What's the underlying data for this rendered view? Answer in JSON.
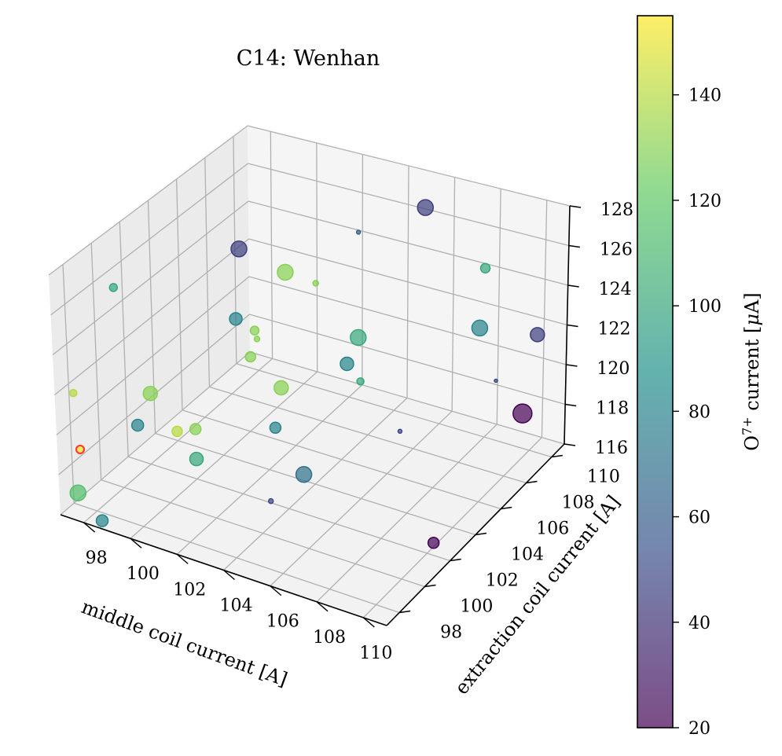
{
  "colors": {
    "pane": "#f2f2f2",
    "pane_side": "#ebebeb",
    "pane_back": "#f5f5f5",
    "grid": "#b0b0b0",
    "highlight": "#ff3b30",
    "colormap": [
      "#440154",
      "#3b528b",
      "#21918c",
      "#5ec962",
      "#fde725"
    ]
  },
  "chart_data": {
    "type": "scatter",
    "projection": "3d",
    "title": "C14: Wenhan",
    "xlabel": "middle coil current [A]",
    "ylabel": "extraction coil current [A]",
    "zlabel": "",
    "xlim": [
      97,
      111
    ],
    "ylim": [
      97,
      111
    ],
    "zlim": [
      116,
      128
    ],
    "xticks": [
      "98",
      "100",
      "102",
      "104",
      "106",
      "108",
      "110"
    ],
    "yticks": [
      "98",
      "100",
      "102",
      "104",
      "106",
      "108",
      "110"
    ],
    "zticks": [
      "116",
      "118",
      "120",
      "122",
      "124",
      "126",
      "128"
    ],
    "grid": true,
    "colorbar": {
      "label": "O⁷⁺ current [μA]",
      "label_base": "O",
      "label_sup": "7+",
      "label_rest": " current [",
      "label_mu": "μ",
      "label_unit": "A]",
      "min": 20,
      "max": 155,
      "ticks": [
        "20",
        "40",
        "60",
        "80",
        "100",
        "120",
        "140"
      ],
      "alpha": 0.7
    },
    "points": [
      {
        "x": 101.5,
        "y": 103.0,
        "z": 127.5,
        "c": 45,
        "s": 20
      },
      {
        "x": 98.5,
        "y": 99.0,
        "z": 126.8,
        "c": 100,
        "s": 10
      },
      {
        "x": 104.0,
        "y": 107.5,
        "z": 126.5,
        "c": 60,
        "s": 5
      },
      {
        "x": 106.0,
        "y": 109.0,
        "z": 127.5,
        "c": 45,
        "s": 20
      },
      {
        "x": 102.0,
        "y": 105.5,
        "z": 125.0,
        "c": 130,
        "s": 20
      },
      {
        "x": 103.0,
        "y": 106.0,
        "z": 124.5,
        "c": 130,
        "s": 7
      },
      {
        "x": 101.0,
        "y": 103.5,
        "z": 123.5,
        "c": 80,
        "s": 16
      },
      {
        "x": 108.0,
        "y": 110.0,
        "z": 124.5,
        "c": 100,
        "s": 12
      },
      {
        "x": 101.5,
        "y": 104.0,
        "z": 122.8,
        "c": 130,
        "s": 11
      },
      {
        "x": 101.3,
        "y": 104.5,
        "z": 122.0,
        "c": 130,
        "s": 7
      },
      {
        "x": 97.5,
        "y": 97.5,
        "z": 122.0,
        "c": 140,
        "s": 9
      },
      {
        "x": 104.5,
        "y": 106.5,
        "z": 122.0,
        "c": 100,
        "s": 20
      },
      {
        "x": 101.0,
        "y": 104.5,
        "z": 121.0,
        "c": 130,
        "s": 13
      },
      {
        "x": 99.0,
        "y": 100.5,
        "z": 120.8,
        "c": 130,
        "s": 18
      },
      {
        "x": 99.0,
        "y": 99.5,
        "z": 119.8,
        "c": 80,
        "s": 15
      },
      {
        "x": 104.0,
        "y": 106.5,
        "z": 120.5,
        "c": 80,
        "s": 17
      },
      {
        "x": 107.5,
        "y": 110.5,
        "z": 121.0,
        "c": 80,
        "s": 20
      },
      {
        "x": 110.0,
        "y": 110.5,
        "z": 121.5,
        "c": 45,
        "s": 18
      },
      {
        "x": 102.0,
        "y": 105.0,
        "z": 119.5,
        "c": 130,
        "s": 18
      },
      {
        "x": 100.0,
        "y": 102.0,
        "z": 118.5,
        "c": 130,
        "s": 14
      },
      {
        "x": 99.5,
        "y": 101.5,
        "z": 118.5,
        "c": 140,
        "s": 13
      },
      {
        "x": 104.0,
        "y": 107.5,
        "z": 119.0,
        "c": 100,
        "s": 9
      },
      {
        "x": 97.5,
        "y": 97.8,
        "z": 119.0,
        "c": 155,
        "s": 10,
        "edge": "highlight"
      },
      {
        "x": 102.0,
        "y": 104.5,
        "z": 117.8,
        "c": 80,
        "s": 14
      },
      {
        "x": 100.0,
        "y": 102.0,
        "z": 117.0,
        "c": 100,
        "s": 17
      },
      {
        "x": 97.5,
        "y": 97.5,
        "z": 117.0,
        "c": 115,
        "s": 20
      },
      {
        "x": 103.5,
        "y": 104.0,
        "z": 116.3,
        "c": 70,
        "s": 20
      },
      {
        "x": 108.5,
        "y": 110.0,
        "z": 119.0,
        "c": 50,
        "s": 4
      },
      {
        "x": 106.0,
        "y": 107.0,
        "z": 117.5,
        "c": 50,
        "s": 5
      },
      {
        "x": 110.5,
        "y": 108.5,
        "z": 119.0,
        "c": 20,
        "s": 24
      },
      {
        "x": 98.5,
        "y": 97.5,
        "z": 116.0,
        "c": 80,
        "s": 15
      },
      {
        "x": 103.5,
        "y": 101.5,
        "z": 116.5,
        "c": 50,
        "s": 6
      },
      {
        "x": 110.0,
        "y": 102.5,
        "z": 116.2,
        "c": 20,
        "s": 14
      }
    ]
  }
}
